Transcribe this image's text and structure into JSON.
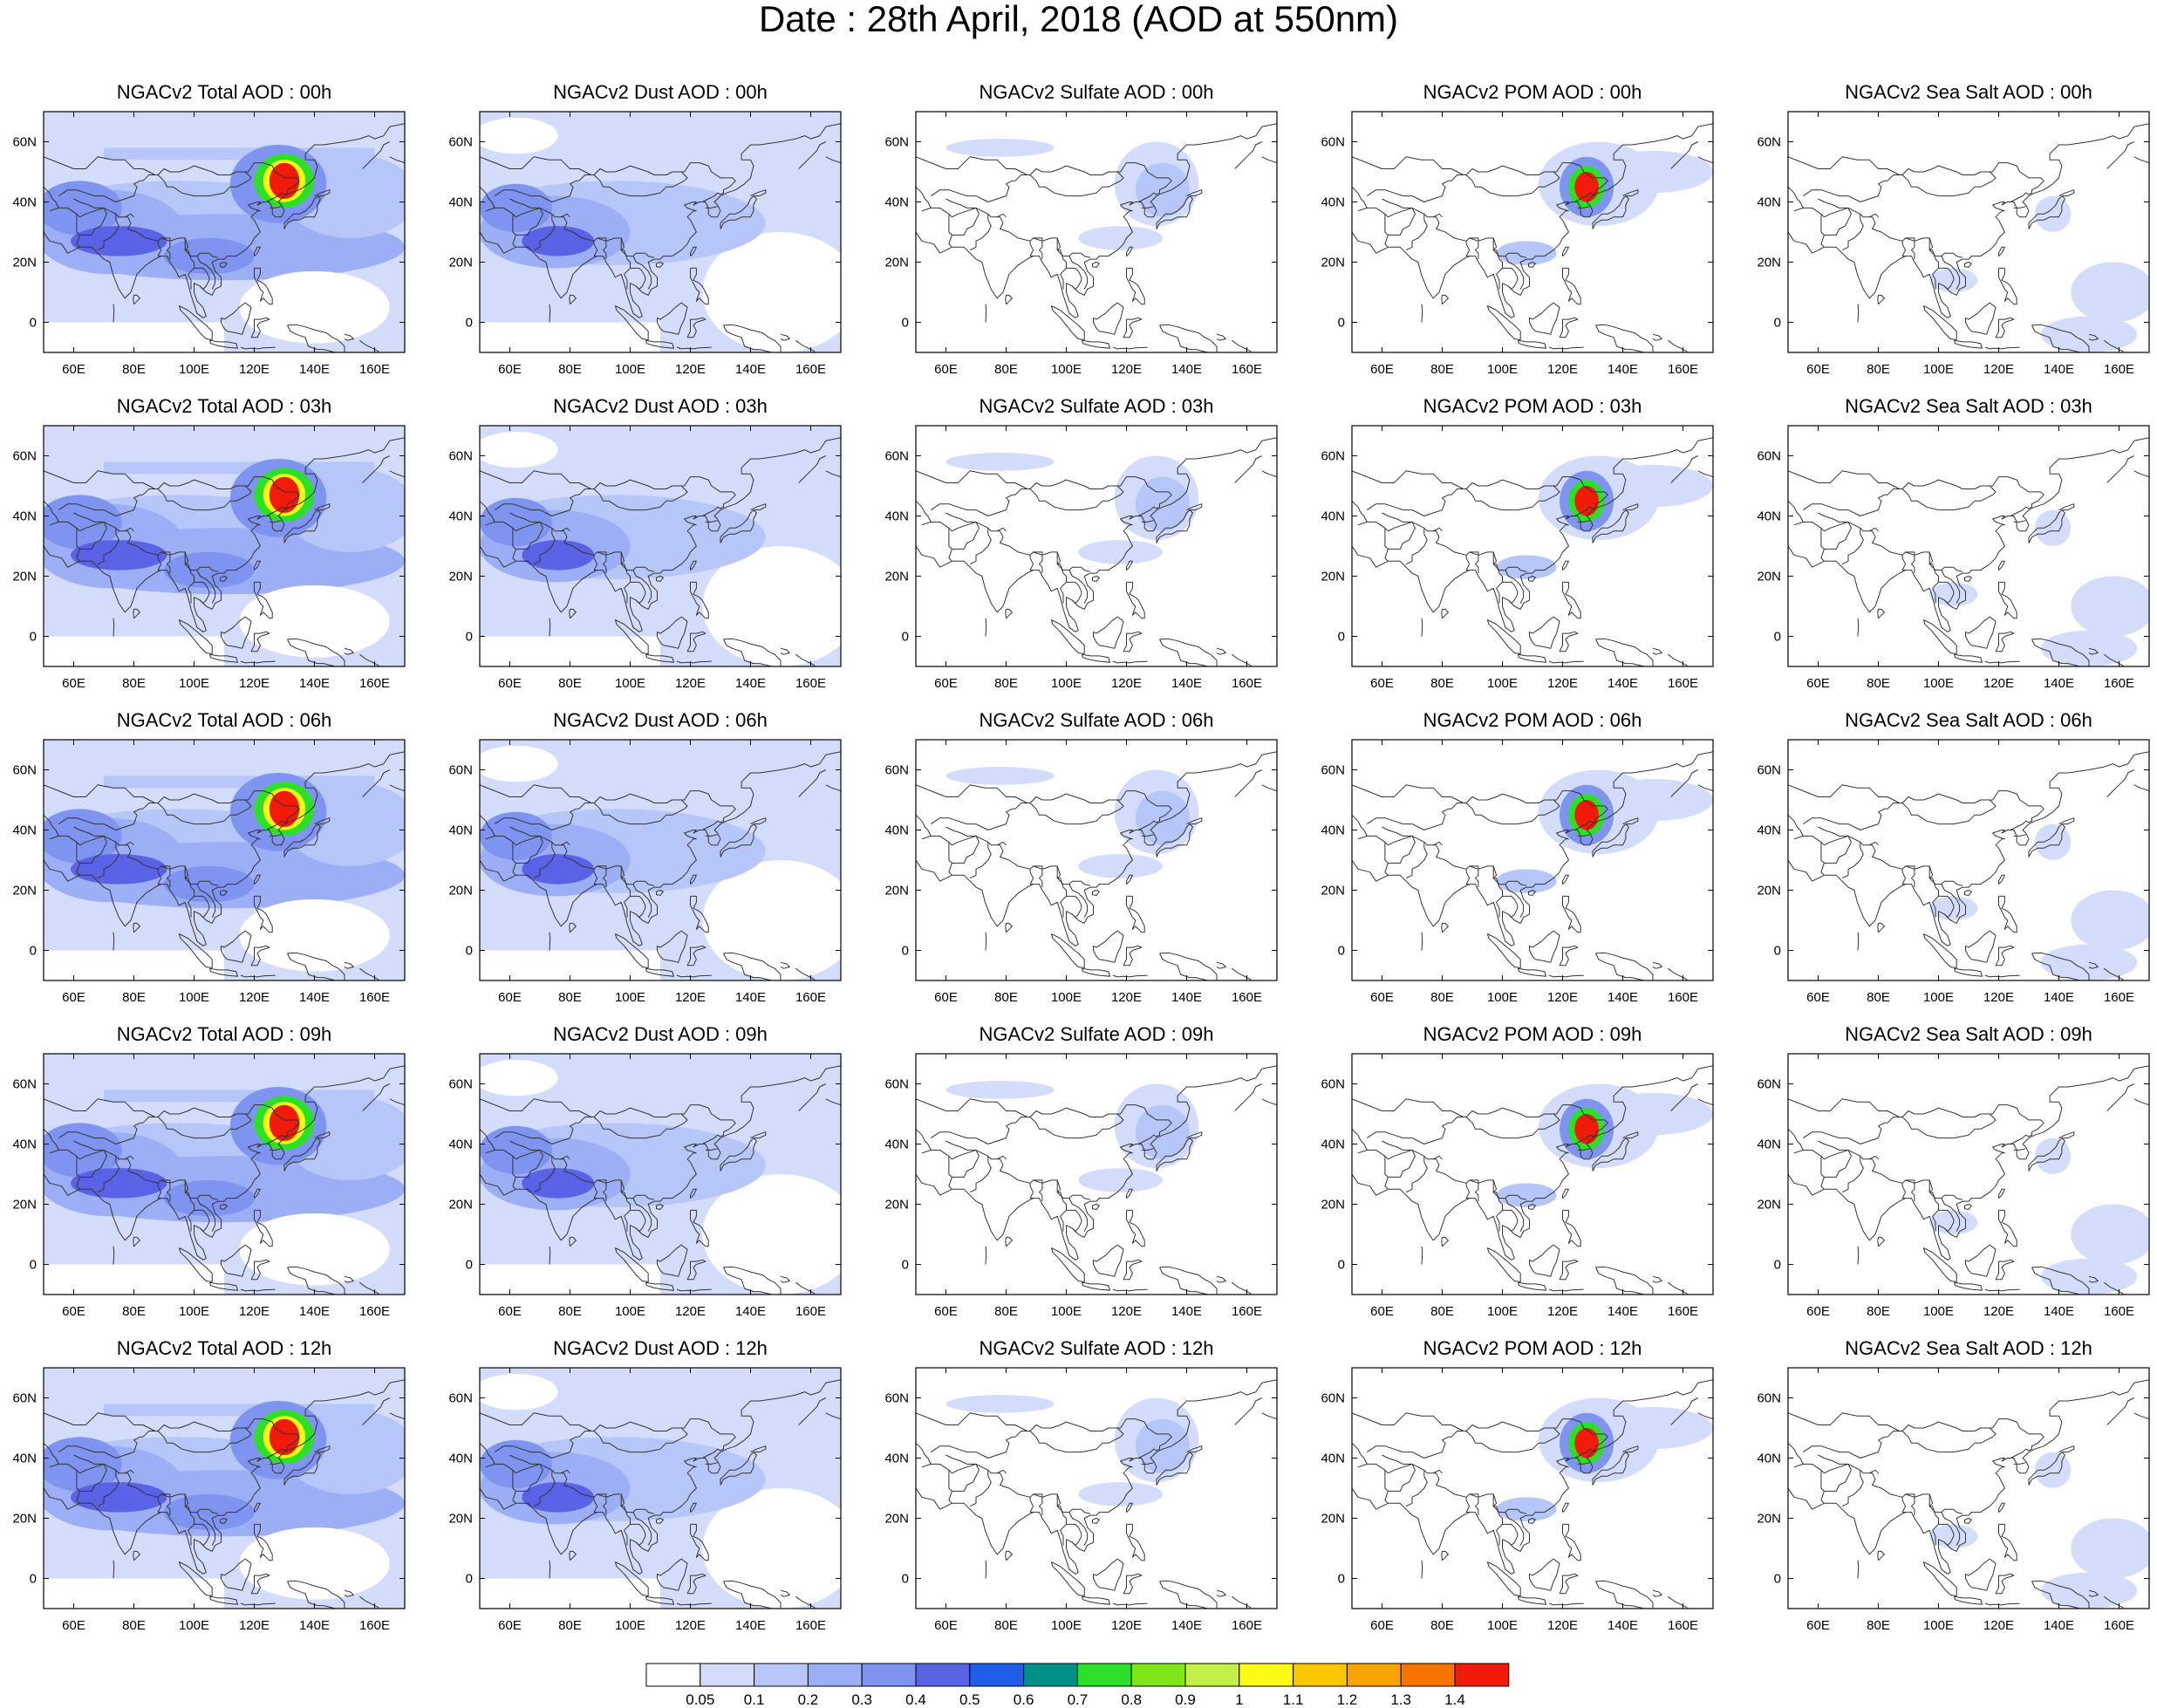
{
  "title": "Date : 28th April, 2018 (AOD at 550nm)",
  "panels": [
    [
      "NGACv2 Total AOD : 00h",
      "NGACv2 Dust AOD : 00h",
      "NGACv2 Sulfate AOD : 00h",
      "NGACv2 POM AOD : 00h",
      "NGACv2 Sea Salt AOD : 00h"
    ],
    [
      "NGACv2 Total AOD : 03h",
      "NGACv2 Dust AOD : 03h",
      "NGACv2 Sulfate AOD : 03h",
      "NGACv2 POM AOD : 03h",
      "NGACv2 Sea Salt AOD : 03h"
    ],
    [
      "NGACv2 Total AOD : 06h",
      "NGACv2 Dust AOD : 06h",
      "NGACv2 Sulfate AOD : 06h",
      "NGACv2 POM AOD : 06h",
      "NGACv2 Sea Salt AOD : 06h"
    ],
    [
      "NGACv2 Total AOD : 09h",
      "NGACv2 Dust AOD : 09h",
      "NGACv2 Sulfate AOD : 09h",
      "NGACv2 POM AOD : 09h",
      "NGACv2 Sea Salt  AOD : 09h"
    ],
    [
      "NGACv2 Total AOD  : 12h",
      "NGACv2 Dust AOD : 12h",
      "NGACv2 Sulfate AOD : 12h",
      "NGACv2 POM  AOD : 12h",
      "NGACv2 Sea Salt  AOD : 12h"
    ]
  ],
  "lon_labels": [
    "60E",
    "80E",
    "100E",
    "120E",
    "140E",
    "160E"
  ],
  "lat_labels": [
    "60N",
    "40N",
    "20N",
    "0"
  ],
  "colorbar": {
    "colors": [
      "#ffffff",
      "#d4dcfb",
      "#b7c6f8",
      "#9caef5",
      "#7f93f0",
      "#5a62e6",
      "#1f5fe8",
      "#00908a",
      "#2ce02a",
      "#7fe617",
      "#c2f046",
      "#fbfb16",
      "#fbc500",
      "#f9a300",
      "#f77400",
      "#f21a08"
    ],
    "labels": [
      "0.05",
      "0.1",
      "0.2",
      "0.3",
      "0.4",
      "0.5",
      "0.6",
      "0.7",
      "0.8",
      "0.9",
      "1",
      "1.1",
      "1.2",
      "1.3",
      "1.4"
    ]
  }
}
